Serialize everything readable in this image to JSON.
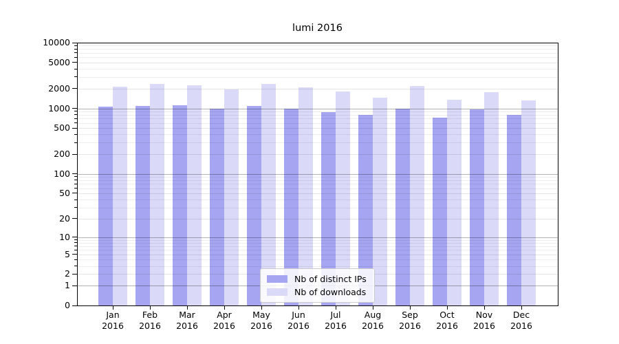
{
  "title": "lumi 2016",
  "legend": {
    "items": [
      {
        "label": "Nb of distinct IPs",
        "color": "#a5a5f2"
      },
      {
        "label": "Nb of downloads",
        "color": "#dadaf8"
      }
    ]
  },
  "chart_data": {
    "type": "bar",
    "title": "lumi 2016",
    "categories": [
      "Jan 2016",
      "Feb 2016",
      "Mar 2016",
      "Apr 2016",
      "May 2016",
      "Jun 2016",
      "Jul 2016",
      "Aug 2016",
      "Sep 2016",
      "Oct 2016",
      "Nov 2016",
      "Dec 2016"
    ],
    "series": [
      {
        "name": "Nb of distinct IPs",
        "color": "#a5a5f2",
        "values": [
          1060,
          1090,
          1120,
          990,
          1090,
          990,
          870,
          790,
          990,
          730,
          960,
          790
        ]
      },
      {
        "name": "Nb of downloads",
        "color": "#dadaf8",
        "values": [
          2130,
          2380,
          2270,
          1960,
          2380,
          2080,
          1800,
          1450,
          2210,
          1360,
          1760,
          1320
        ]
      }
    ],
    "xlabel": "",
    "ylabel": "",
    "yscale": "symlog",
    "ylim": [
      0,
      10000
    ],
    "yticks": [
      0,
      1,
      2,
      5,
      10,
      20,
      50,
      100,
      200,
      500,
      1000,
      2000,
      5000,
      10000
    ],
    "grid": true,
    "legend_position": "lower center inside"
  }
}
